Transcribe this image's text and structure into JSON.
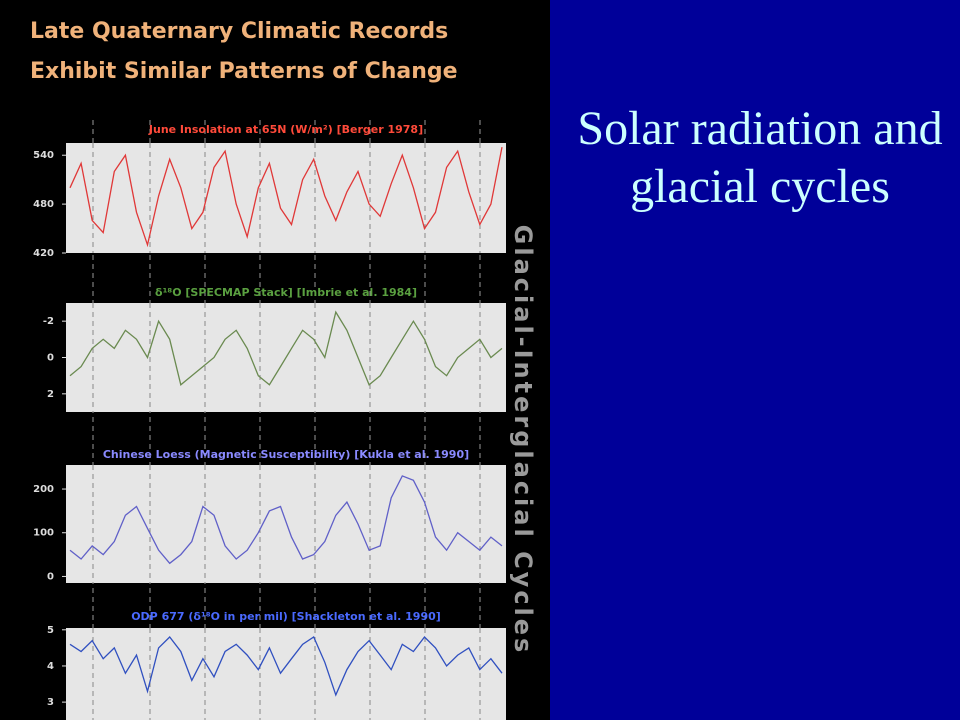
{
  "slide_title": [
    "Late Quaternary Climatic Records",
    "Exhibit Similar Patterns of Change"
  ],
  "side_label": "Glacial-Interglacial Cycles",
  "caption": "Solar radiation and glacial cycles",
  "chart_data": [
    {
      "type": "line",
      "title": "June Insolation at 65N (W/m²) [Berger 1978]",
      "color": "#e03838",
      "values": [
        500,
        530,
        460,
        445,
        520,
        540,
        470,
        430,
        490,
        535,
        500,
        450,
        470,
        525,
        545,
        480,
        440,
        500,
        530,
        475,
        455,
        510,
        535,
        490,
        460,
        495,
        520,
        480,
        465,
        505,
        540,
        500,
        450,
        470,
        525,
        545,
        495,
        455,
        480,
        550
      ],
      "ylim": [
        420,
        555
      ],
      "yticks": [
        540,
        480,
        420
      ]
    },
    {
      "type": "line",
      "title": "δ¹⁸O [SPECMAP Stack] [Imbrie et al. 1984]",
      "color": "#6a8a50",
      "values": [
        1,
        0.5,
        -0.5,
        -1,
        -0.5,
        -1.5,
        -1,
        0,
        -2,
        -1,
        1.5,
        1,
        0.5,
        0,
        -1,
        -1.5,
        -0.5,
        1,
        1.5,
        0.5,
        -0.5,
        -1.5,
        -1,
        0,
        -2.5,
        -1.5,
        0,
        1.5,
        1,
        0,
        -1,
        -2,
        -1,
        0.5,
        1,
        0,
        -0.5,
        -1,
        0,
        -0.5
      ],
      "ylim": [
        3,
        -3
      ],
      "yticks": [
        -2,
        0,
        2
      ]
    },
    {
      "type": "line",
      "title": "Chinese Loess (Magnetic Susceptibility) [Kukla et al. 1990]",
      "color": "#6060c8",
      "values": [
        60,
        40,
        70,
        50,
        80,
        140,
        160,
        110,
        60,
        30,
        50,
        80,
        160,
        140,
        70,
        40,
        60,
        100,
        150,
        160,
        90,
        40,
        50,
        80,
        140,
        170,
        120,
        60,
        70,
        180,
        230,
        220,
        170,
        90,
        60,
        100,
        80,
        60,
        90,
        70
      ],
      "ylim": [
        -15,
        255
      ],
      "yticks": [
        200,
        100,
        0
      ]
    },
    {
      "type": "line",
      "title": "ODP 677 (δ¹⁸O in per mil) [Shackleton et al. 1990]",
      "color": "#3050c0",
      "values": [
        4.6,
        4.4,
        4.7,
        4.2,
        4.5,
        3.8,
        4.3,
        3.3,
        4.5,
        4.8,
        4.4,
        3.6,
        4.2,
        3.7,
        4.4,
        4.6,
        4.3,
        3.9,
        4.5,
        3.8,
        4.2,
        4.6,
        4.8,
        4.1,
        3.2,
        3.9,
        4.4,
        4.7,
        4.3,
        3.9,
        4.6,
        4.4,
        4.8,
        4.5,
        4.0,
        4.3,
        4.5,
        3.9,
        4.2,
        3.8
      ],
      "ylim": [
        2.45,
        5.05
      ],
      "yticks": [
        3,
        4,
        5
      ]
    }
  ]
}
